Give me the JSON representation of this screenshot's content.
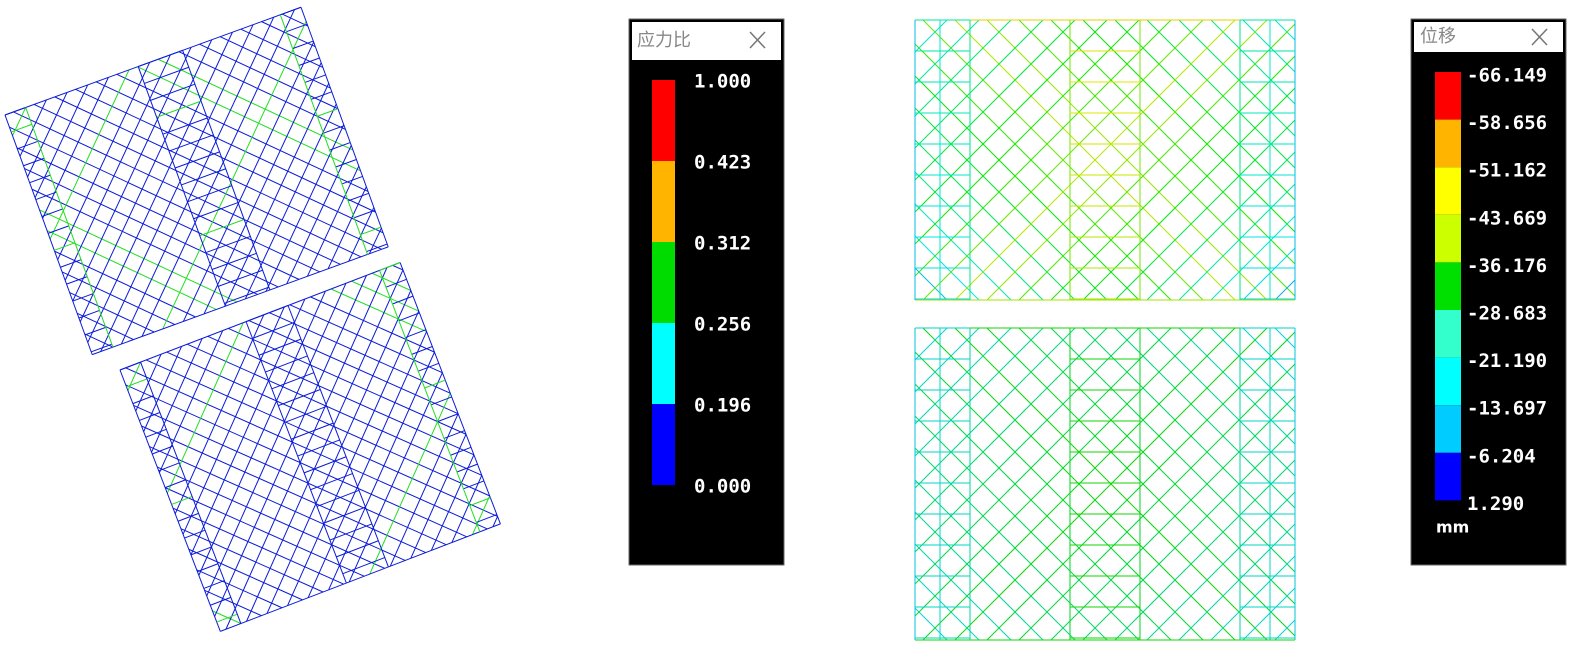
{
  "stress_legend": {
    "title": "应力比",
    "labels": [
      "1.000",
      "0.423",
      "0.312",
      "0.256",
      "0.196",
      "0.000"
    ],
    "colors": [
      "#ff0000",
      "#ffb400",
      "#00dc00",
      "#00ffff",
      "#0000ff"
    ]
  },
  "displacement_legend": {
    "title": "位移",
    "labels": [
      "-66.149",
      "-58.656",
      "-51.162",
      "-43.669",
      "-36.176",
      "-28.683",
      "-21.190",
      "-13.697",
      "-6.204",
      "1.290"
    ],
    "colors": [
      "#ff0000",
      "#ffb400",
      "#ffff00",
      "#ccff00",
      "#00e000",
      "#33ffcc",
      "#00ffff",
      "#00ccff",
      "#0000ff"
    ],
    "unit": "mm"
  }
}
